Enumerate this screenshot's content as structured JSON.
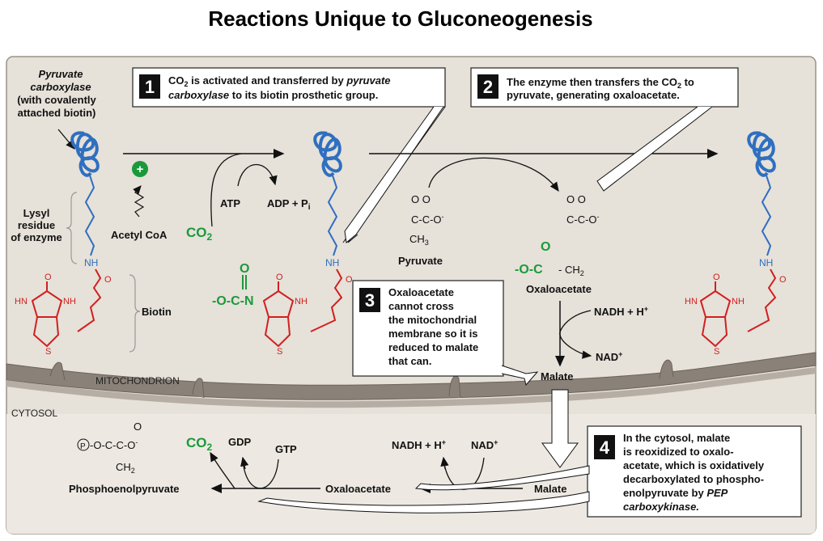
{
  "title": "Reactions Unique to Gluconeogenesis",
  "compartments": {
    "mitochondrion": "MITOCHONDRION",
    "cytosol": "CYTOSOL"
  },
  "enzyme_labels": {
    "pyruvate_carboxylase": "Pyruvate",
    "pyruvate_carboxylase_2": "carboxylase",
    "with_biotin_1": "(with covalently",
    "with_biotin_2": "attached biotin)",
    "lysyl_1": "Lysyl",
    "lysyl_2": "residue",
    "lysyl_3": "of enzyme",
    "biotin": "Biotin",
    "nh": "NH",
    "hn": "HN",
    "o": "O",
    "s": "S",
    "n": "N"
  },
  "step1": {
    "number": "1",
    "line1_a": "CO",
    "line1_sub": "2",
    "line1_b": " is activated and transferred by ",
    "line1_it": "pyruvate",
    "line2_it": "carboxylase",
    "line2_b": " to its biotin prosthetic group."
  },
  "step2": {
    "number": "2",
    "line1_a": "The enzyme then transfers the CO",
    "line1_sub": "2",
    "line1_b": " to",
    "line2": "pyruvate, generating oxaloacetate."
  },
  "step3": {
    "number": "3",
    "lines": [
      "Oxaloacetate",
      "cannot  cross",
      "the mitochondrial",
      "membrane so it is",
      "reduced to malate",
      "that can."
    ]
  },
  "step4": {
    "number": "4",
    "lines": [
      "In the cytosol, malate",
      "is reoxidized to oxalo-",
      "acetate, which is oxidatively",
      "decarboxylated to phospho-",
      "enolpyruvate by "
    ],
    "it_a": "PEP",
    "it_b": "carboxykinase."
  },
  "reagents": {
    "plus": "+",
    "acetyl_coa": "Acetyl CoA",
    "co2": "CO",
    "co2_sub": "2",
    "atp": "ATP",
    "adp_pi": "ADP + P",
    "pi_sub": "i",
    "carboxy_o_minus": "-O-C-N",
    "carboxy_o": "O",
    "pyruvate": "Pyruvate",
    "pyruvate_top": "O  O",
    "pyruvate_mid": "C-C-O",
    "pyruvate_minus": "-",
    "pyruvate_bot": "CH",
    "pyruvate_bot_sub": "3",
    "oaa": "Oxaloacetate",
    "oaa_top": "O  O",
    "oaa_mid": "C-C-O",
    "oaa_green_left": "-O-C",
    "oaa_green_o": "O",
    "oaa_ch2": "- CH",
    "oaa_ch2_sub": "2",
    "nadh_h": "NADH + H",
    "nadh_plus": "+",
    "nad": "NAD",
    "nad_plus": "+",
    "malate": "Malate",
    "malate_cyt": "Malate",
    "oaa_cyt": "Oxaloacetate",
    "nadh_h_cyt": "NADH + H",
    "nad_cyt": "NAD",
    "gdp": "GDP",
    "gtp": "GTP",
    "pep": "Phosphoenolpyruvate",
    "pep_top": "O",
    "pep_mid": "-O-C-C-O",
    "pep_p": "P",
    "pep_bot": "CH",
    "pep_bot_sub": "2"
  }
}
